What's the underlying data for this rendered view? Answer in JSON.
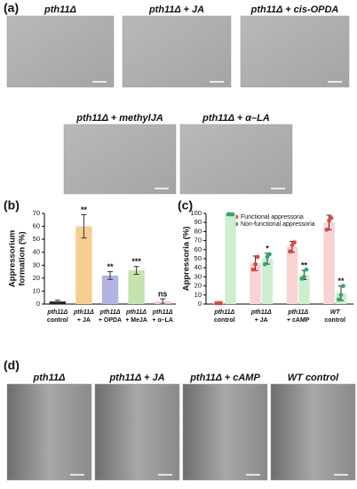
{
  "figure": {
    "panel_a": {
      "label": "(a)",
      "titles": [
        "pth11Δ",
        "pth11Δ + JA",
        "pth11Δ + cis-OPDA",
        "pth11Δ + methylJA",
        "pth11Δ + α–LA"
      ]
    },
    "panel_b": {
      "label": "(b)"
    },
    "panel_c": {
      "label": "(c)"
    },
    "panel_d": {
      "label": "(d)",
      "titles": [
        "pth11Δ",
        "pth11Δ + JA",
        "pth11Δ + cAMP",
        "WT control"
      ]
    }
  },
  "chart_data": [
    {
      "type": "bar",
      "ylabel": [
        "Appressorium",
        "formation (%)"
      ],
      "categories": [
        [
          "pth11Δ",
          "control"
        ],
        [
          "pth11Δ",
          "+ JA"
        ],
        [
          "pth11Δ",
          "+ OPDA"
        ],
        [
          "pth11Δ",
          "+ MeJA"
        ],
        [
          "pth11Δ",
          "+ α–LA"
        ]
      ],
      "values": [
        2,
        60,
        22,
        26,
        2
      ],
      "errors": [
        1,
        9,
        3,
        3,
        2
      ],
      "colors": [
        "#222222",
        "#f6cd8f",
        "#b3b3df",
        "#c4e3ad",
        "#f3c3cf"
      ],
      "annotations": [
        null,
        "**",
        "**",
        "***",
        "ns"
      ],
      "ylim": [
        0,
        70
      ],
      "yticks": [
        0,
        10,
        20,
        30,
        40,
        50,
        60,
        70
      ]
    },
    {
      "type": "grouped-bar",
      "ylabel": "Appressoria (%)",
      "categories": [
        [
          "pth11Δ",
          "control"
        ],
        [
          "pth11Δ",
          "+ JA"
        ],
        [
          "pth11Δ",
          "+ cAMP"
        ],
        [
          "WT",
          "control"
        ]
      ],
      "series": [
        {
          "name": "Functional appressoria",
          "color": "#e8453c",
          "bar_color": "#f9d3d3",
          "values": [
            1,
            45,
            63,
            90
          ],
          "errors": [
            0,
            8,
            6,
            8
          ],
          "points": [
            [
              1,
              1,
              1
            ],
            [
              38,
              44,
              52
            ],
            [
              58,
              65,
              68
            ],
            [
              82,
              92,
              95
            ]
          ],
          "annotations": [
            null,
            null,
            null,
            null
          ]
        },
        {
          "name": "Non-functional appressoria",
          "color": "#2eaa6e",
          "bar_color": "#cdeecf",
          "values": [
            99,
            50,
            32,
            12
          ],
          "errors": [
            0,
            6,
            5,
            8
          ],
          "points": [
            [
              99,
              99,
              99
            ],
            [
              44,
              52,
              55
            ],
            [
              28,
              30,
              38
            ],
            [
              5,
              10,
              20
            ]
          ],
          "annotations": [
            null,
            "*",
            "**",
            "**"
          ]
        }
      ],
      "ylim": [
        0,
        100
      ],
      "yticks": [
        0,
        10,
        20,
        30,
        40,
        50,
        60,
        70,
        80,
        90,
        100
      ]
    }
  ]
}
